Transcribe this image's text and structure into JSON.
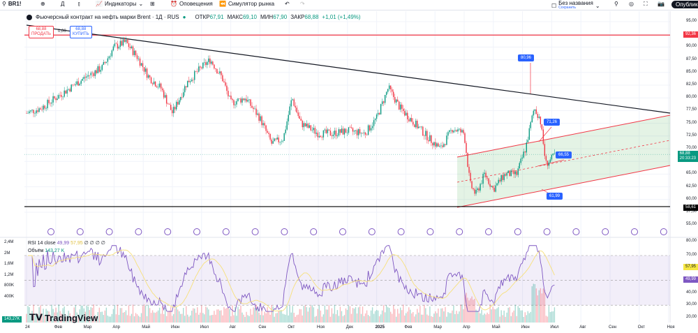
{
  "toolbar": {
    "symbol": "BR1!",
    "indicators": "Индикаторы",
    "alerts": "Оповещения",
    "replay": "Симулятор рынка",
    "layout_name": "Без названия",
    "save": "Сохранить",
    "publish": "Опубликовать"
  },
  "legend": {
    "title": "Фьючерсный контракт на нефть марки Brent · 1Д · RUS",
    "open_label": "ОТКР",
    "open": "67,91",
    "high_label": "МАКС",
    "high": "69,10",
    "low_label": "МИН",
    "low": "67,90",
    "close_label": "ЗАКР",
    "close": "68,88",
    "change": "+1,01 (+1,49%)"
  },
  "trade": {
    "sell_price": "68,88",
    "sell": "ПРОДАТЬ",
    "spread": "0,00",
    "buy_price": "68,88",
    "buy": "КУПИТЬ"
  },
  "price_scale": [
    "95,00",
    "90,00",
    "87,50",
    "85,00",
    "82,50",
    "80,00",
    "77,50",
    "75,00",
    "72,50",
    "70,00",
    "65,00",
    "62,50",
    "60,00",
    "57,50",
    "55,00"
  ],
  "price_tags": {
    "resistance": "92,36",
    "support": "58,61",
    "last": "68,88",
    "countdown": "20:33:23"
  },
  "annotations": [
    "80,96",
    "71,26",
    "66,55",
    "61,99"
  ],
  "rsi": {
    "label": "RSI 14 close",
    "value": "49,99",
    "ma": "57,95",
    "extra": "∅ ∅ ∅ ∅",
    "scale": [
      "80,00",
      "70,00",
      "40,00",
      "30,00",
      "20,00"
    ]
  },
  "volume": {
    "label": "Объём",
    "value": "143,27 K",
    "scale": [
      "2,4M",
      "2M",
      "1,6M",
      "1,2M",
      "800K",
      "400K"
    ],
    "tag": "143,27K"
  },
  "x_axis": [
    "24",
    "Фев",
    "Мар",
    "Апр",
    "Май",
    "Июн",
    "Июл",
    "Авг",
    "Сен",
    "Окт",
    "Ноя",
    "Дек",
    "2025",
    "Фев",
    "Мар",
    "Апр",
    "Май",
    "Июн",
    "Июл",
    "Авг",
    "Сен",
    "Окт",
    "Ноя"
  ],
  "brand": "TradingView",
  "colors": {
    "up": "#089981",
    "down": "#f23645",
    "rsi": "#7e57c2",
    "rsi_ma": "#f7e07a",
    "channel": "#4caf50"
  },
  "price_path": [
    [
      0,
      77
    ],
    [
      0.5,
      78
    ],
    [
      1,
      80
    ],
    [
      1.5,
      82
    ],
    [
      2,
      84
    ],
    [
      2.6,
      86
    ],
    [
      3,
      90
    ],
    [
      3.4,
      91
    ],
    [
      3.8,
      88
    ],
    [
      4.2,
      84
    ],
    [
      4.6,
      82
    ],
    [
      5,
      77
    ],
    [
      5.5,
      83
    ],
    [
      6,
      86
    ],
    [
      6.3,
      87.5
    ],
    [
      6.7,
      84
    ],
    [
      7,
      79
    ],
    [
      7.5,
      80
    ],
    [
      8,
      76
    ],
    [
      8.4,
      71
    ],
    [
      8.8,
      72
    ],
    [
      9.1,
      80
    ],
    [
      9.4,
      75
    ],
    [
      10,
      73
    ],
    [
      10.5,
      73
    ],
    [
      11,
      73.5
    ],
    [
      11.6,
      73
    ],
    [
      12,
      76
    ],
    [
      12.4,
      82
    ],
    [
      12.8,
      78
    ],
    [
      13.3,
      75
    ],
    [
      13.8,
      72
    ],
    [
      14.2,
      70
    ],
    [
      14.6,
      74
    ],
    [
      15,
      73
    ],
    [
      15.2,
      63
    ],
    [
      15.4,
      61
    ],
    [
      15.7,
      65
    ],
    [
      16,
      62
    ],
    [
      16.4,
      65
    ],
    [
      16.8,
      65
    ],
    [
      17.1,
      70
    ],
    [
      17.4,
      78
    ],
    [
      17.6,
      76
    ],
    [
      17.8,
      67
    ],
    [
      18,
      68
    ],
    [
      18.1,
      68.88
    ]
  ]
}
